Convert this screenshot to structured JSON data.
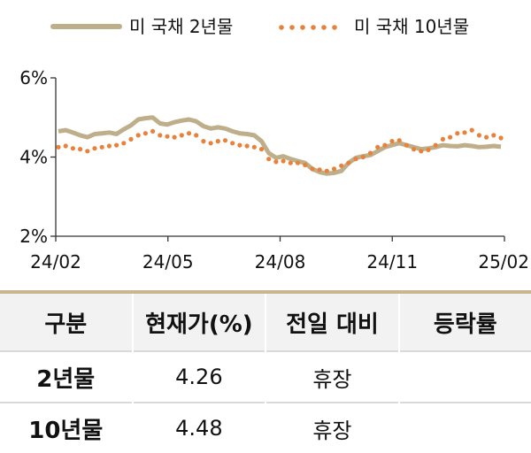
{
  "legend": {
    "series1": "미 국채 2년물",
    "series2": "미 국채 10년물"
  },
  "colors": {
    "series1": "#bfae8a",
    "series2": "#e8823a",
    "table_rule": "#c8b68e",
    "header_bg": "#f2f2f2"
  },
  "chart_data": {
    "type": "line",
    "x_tick_labels": [
      "24/02",
      "24/05",
      "24/08",
      "24/11",
      "25/02"
    ],
    "y_tick_labels": [
      "6%",
      "4%",
      "2%"
    ],
    "ylim": [
      2,
      6
    ],
    "grid": false,
    "legend_position": "top",
    "series": [
      {
        "name": "미 국채 2년물",
        "style": "solid",
        "values": [
          4.65,
          4.68,
          4.62,
          4.55,
          4.5,
          4.58,
          4.6,
          4.62,
          4.58,
          4.7,
          4.8,
          4.95,
          4.98,
          5.0,
          4.85,
          4.82,
          4.88,
          4.92,
          4.95,
          4.9,
          4.78,
          4.72,
          4.75,
          4.72,
          4.65,
          4.6,
          4.58,
          4.55,
          4.4,
          4.1,
          3.98,
          4.02,
          3.95,
          3.9,
          3.85,
          3.7,
          3.62,
          3.58,
          3.6,
          3.65,
          3.85,
          3.98,
          4.02,
          4.05,
          4.15,
          4.25,
          4.3,
          4.35,
          4.3,
          4.25,
          4.2,
          4.22,
          4.25,
          4.3,
          4.28,
          4.27,
          4.3,
          4.28,
          4.25,
          4.26,
          4.28,
          4.26
        ]
      },
      {
        "name": "미 국채 10년물",
        "style": "dotted",
        "values": [
          4.25,
          4.28,
          4.22,
          4.2,
          4.15,
          4.22,
          4.25,
          4.28,
          4.3,
          4.35,
          4.45,
          4.55,
          4.6,
          4.65,
          4.55,
          4.52,
          4.5,
          4.55,
          4.6,
          4.55,
          4.4,
          4.35,
          4.4,
          4.42,
          4.35,
          4.3,
          4.28,
          4.25,
          4.2,
          3.95,
          3.88,
          3.9,
          3.85,
          3.85,
          3.8,
          3.7,
          3.68,
          3.65,
          3.7,
          3.78,
          3.85,
          3.95,
          4.0,
          4.1,
          4.25,
          4.3,
          4.4,
          4.42,
          4.3,
          4.2,
          4.15,
          4.18,
          4.3,
          4.45,
          4.5,
          4.6,
          4.62,
          4.68,
          4.55,
          4.5,
          4.55,
          4.48
        ]
      }
    ]
  },
  "table": {
    "headers": [
      "구분",
      "현재가(%)",
      "전일 대비",
      "등락률"
    ],
    "rows": [
      {
        "label": "2년물",
        "price": "4.26",
        "change": "휴장",
        "rate": ""
      },
      {
        "label": "10년물",
        "price": "4.48",
        "change": "휴장",
        "rate": ""
      }
    ]
  }
}
